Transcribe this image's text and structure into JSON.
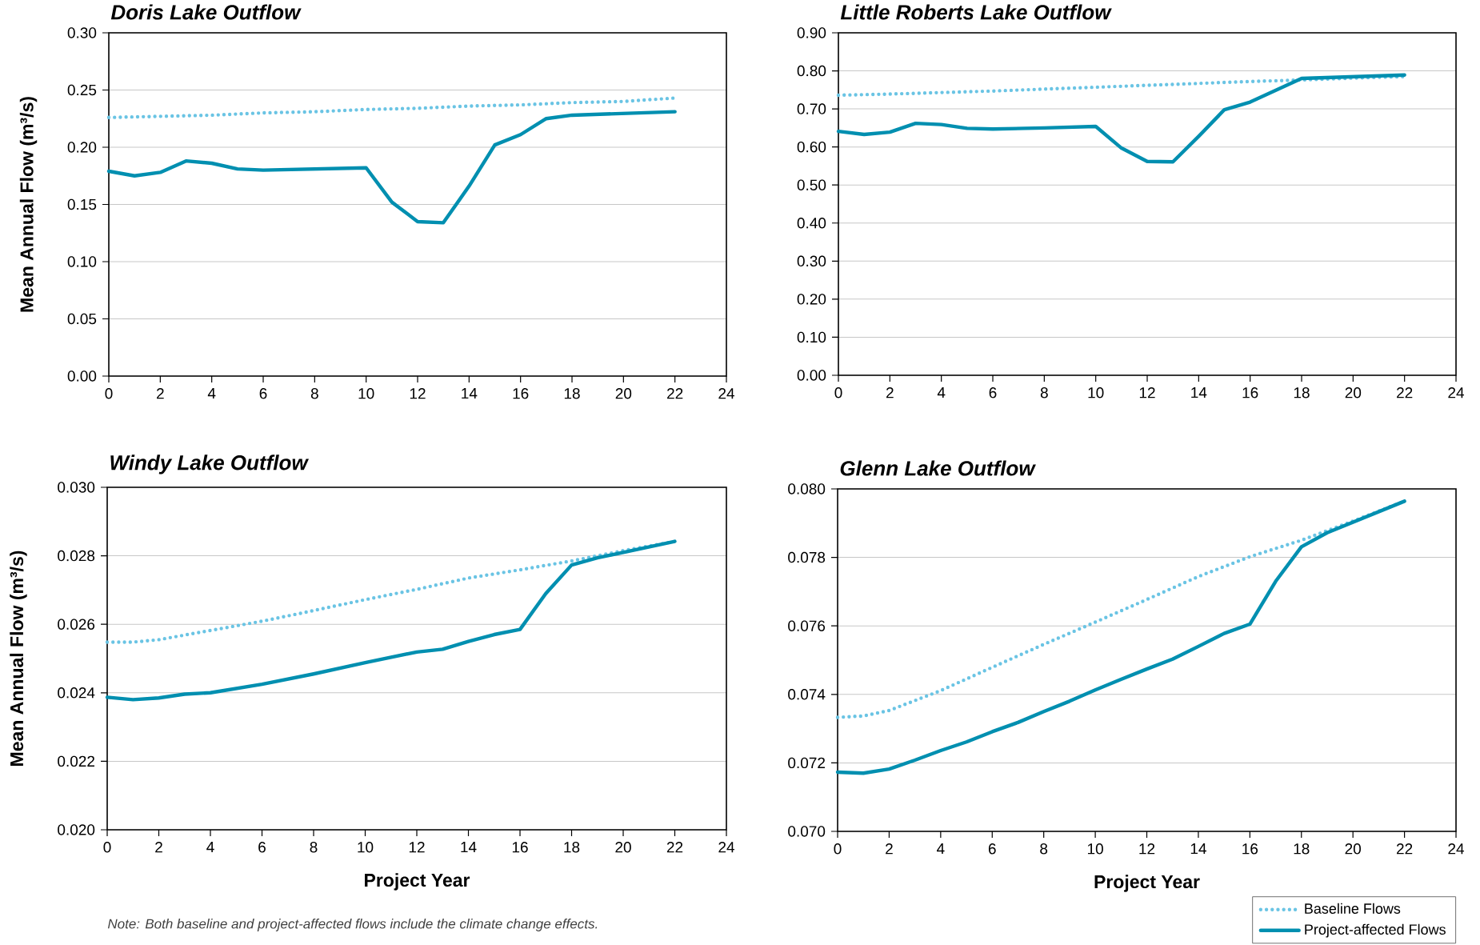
{
  "chart_data": [
    {
      "type": "line",
      "title": "Doris Lake Outflow",
      "ylabel": "Mean Annual Flow (m³/s)",
      "xlim": [
        0,
        24
      ],
      "ylim": [
        0,
        0.3
      ],
      "xticks": [
        0,
        2,
        4,
        6,
        8,
        10,
        12,
        14,
        16,
        18,
        20,
        22,
        24
      ],
      "yticks": [
        {
          "value": 0,
          "label": "0.00"
        },
        {
          "value": 0.05,
          "label": "0.05"
        },
        {
          "value": 0.1,
          "label": "0.10"
        },
        {
          "value": 0.15,
          "label": "0.15"
        },
        {
          "value": 0.2,
          "label": "0.20"
        },
        {
          "value": 0.25,
          "label": "0.25"
        },
        {
          "value": 0.3,
          "label": "0.30"
        }
      ],
      "grid": "y",
      "series": [
        {
          "color": "#6ac4e4",
          "line_style": "dotted",
          "x": [
            0,
            2,
            4,
            6,
            8,
            10,
            12,
            14,
            16,
            18,
            20,
            22
          ],
          "values": [
            0.226,
            0.227,
            0.228,
            0.23,
            0.231,
            0.233,
            0.234,
            0.236,
            0.237,
            0.239,
            0.24,
            0.243
          ]
        },
        {
          "color": "#008fb0",
          "line_style": "solid",
          "x": [
            0,
            1,
            2,
            3,
            4,
            5,
            6,
            10,
            11,
            12,
            13,
            14,
            15,
            16,
            17,
            18,
            22
          ],
          "values": [
            0.179,
            0.175,
            0.178,
            0.188,
            0.186,
            0.181,
            0.18,
            0.182,
            0.152,
            0.135,
            0.134,
            0.166,
            0.202,
            0.211,
            0.225,
            0.228,
            0.231
          ]
        }
      ]
    },
    {
      "type": "line",
      "title": "Little Roberts Lake Outflow",
      "xlim": [
        0,
        24
      ],
      "ylim": [
        0,
        0.9
      ],
      "xticks": [
        0,
        2,
        4,
        6,
        8,
        10,
        12,
        14,
        16,
        18,
        20,
        22,
        24
      ],
      "yticks": [
        {
          "value": 0,
          "label": "0.00"
        },
        {
          "value": 0.1,
          "label": "0.10"
        },
        {
          "value": 0.2,
          "label": "0.20"
        },
        {
          "value": 0.3,
          "label": "0.30"
        },
        {
          "value": 0.4,
          "label": "0.40"
        },
        {
          "value": 0.5,
          "label": "0.50"
        },
        {
          "value": 0.6,
          "label": "0.60"
        },
        {
          "value": 0.7,
          "label": "0.70"
        },
        {
          "value": 0.8,
          "label": "0.80"
        },
        {
          "value": 0.9,
          "label": "0.90"
        }
      ],
      "grid": "y",
      "series": [
        {
          "color": "#6ac4e4",
          "line_style": "dotted",
          "x": [
            0,
            2,
            4,
            6,
            8,
            10,
            12,
            14,
            16,
            18,
            20,
            22
          ],
          "values": [
            0.736,
            0.739,
            0.743,
            0.747,
            0.752,
            0.757,
            0.762,
            0.767,
            0.772,
            0.776,
            0.781,
            0.785
          ]
        },
        {
          "color": "#008fb0",
          "line_style": "solid",
          "x": [
            0,
            1,
            2,
            3,
            4,
            5,
            6,
            8,
            10,
            11,
            12,
            13,
            14,
            15,
            16,
            17,
            18,
            22
          ],
          "values": [
            0.641,
            0.633,
            0.639,
            0.662,
            0.659,
            0.649,
            0.647,
            0.65,
            0.654,
            0.597,
            0.562,
            0.561,
            0.628,
            0.698,
            0.718,
            0.749,
            0.78,
            0.789
          ]
        }
      ]
    },
    {
      "type": "line",
      "title": "Windy Lake Outflow",
      "xlabel": "Project Year",
      "ylabel": "Mean Annual Flow (m³/s)",
      "xlim": [
        0,
        24
      ],
      "ylim": [
        0.02,
        0.03
      ],
      "xticks": [
        0,
        2,
        4,
        6,
        8,
        10,
        12,
        14,
        16,
        18,
        20,
        22,
        24
      ],
      "yticks": [
        {
          "value": 0.02,
          "label": "0.020"
        },
        {
          "value": 0.022,
          "label": "0.022"
        },
        {
          "value": 0.024,
          "label": "0.024"
        },
        {
          "value": 0.026,
          "label": "0.026"
        },
        {
          "value": 0.028,
          "label": "0.028"
        },
        {
          "value": 0.03,
          "label": "0.030"
        }
      ],
      "grid": "y",
      "annotations": [
        "Note: Both baseline and project-affected flows include the climate change effects."
      ],
      "series": [
        {
          "color": "#6ac4e4",
          "line_style": "dotted",
          "x": [
            0,
            1,
            2,
            4,
            6,
            8,
            10,
            12,
            14,
            16,
            18,
            20,
            22
          ],
          "values": [
            0.02548,
            0.02548,
            0.02555,
            0.02582,
            0.02609,
            0.0264,
            0.02672,
            0.02702,
            0.02735,
            0.02759,
            0.02785,
            0.02815,
            0.02842
          ]
        },
        {
          "color": "#008fb0",
          "line_style": "solid",
          "x": [
            0,
            1,
            2,
            3,
            4,
            6,
            8,
            10,
            12,
            13,
            14,
            15,
            16,
            17,
            18,
            19,
            22
          ],
          "values": [
            0.02387,
            0.0238,
            0.02385,
            0.02396,
            0.024,
            0.02425,
            0.02455,
            0.02488,
            0.02519,
            0.02527,
            0.0255,
            0.0257,
            0.02585,
            0.0269,
            0.02773,
            0.02794,
            0.02842
          ]
        }
      ]
    },
    {
      "type": "line",
      "title": "Glenn Lake Outflow",
      "xlabel": "Project Year",
      "xlim": [
        0,
        24
      ],
      "ylim": [
        0.07,
        0.08
      ],
      "xticks": [
        0,
        2,
        4,
        6,
        8,
        10,
        12,
        14,
        16,
        18,
        20,
        22,
        24
      ],
      "yticks": [
        {
          "value": 0.07,
          "label": "0.070"
        },
        {
          "value": 0.072,
          "label": "0.072"
        },
        {
          "value": 0.074,
          "label": "0.074"
        },
        {
          "value": 0.076,
          "label": "0.076"
        },
        {
          "value": 0.078,
          "label": "0.078"
        },
        {
          "value": 0.08,
          "label": "0.080"
        }
      ],
      "grid": "y",
      "legend": "bottom right",
      "series": [
        {
          "name": "Baseline Flows",
          "color": "#6ac4e4",
          "line_style": "dotted",
          "x": [
            0,
            1,
            2,
            4,
            6,
            8,
            10,
            12,
            14,
            16,
            18,
            20,
            22
          ],
          "values": [
            0.07333,
            0.07337,
            0.07353,
            0.07411,
            0.07479,
            0.07546,
            0.07611,
            0.07677,
            0.07744,
            0.07802,
            0.0785,
            0.07906,
            0.07964
          ]
        },
        {
          "name": "Project-affected Flows",
          "color": "#008fb0",
          "line_style": "solid",
          "x": [
            0,
            1,
            2,
            3,
            4,
            5,
            6,
            7,
            8,
            9,
            10,
            11,
            12,
            13,
            14,
            15,
            16,
            17,
            18,
            19,
            22
          ],
          "values": [
            0.07173,
            0.0717,
            0.07182,
            0.07208,
            0.07236,
            0.07261,
            0.07291,
            0.07318,
            0.0735,
            0.0738,
            0.07413,
            0.07444,
            0.07474,
            0.07503,
            0.0754,
            0.07578,
            0.07605,
            0.0773,
            0.07831,
            0.07872,
            0.07964
          ]
        }
      ]
    }
  ]
}
